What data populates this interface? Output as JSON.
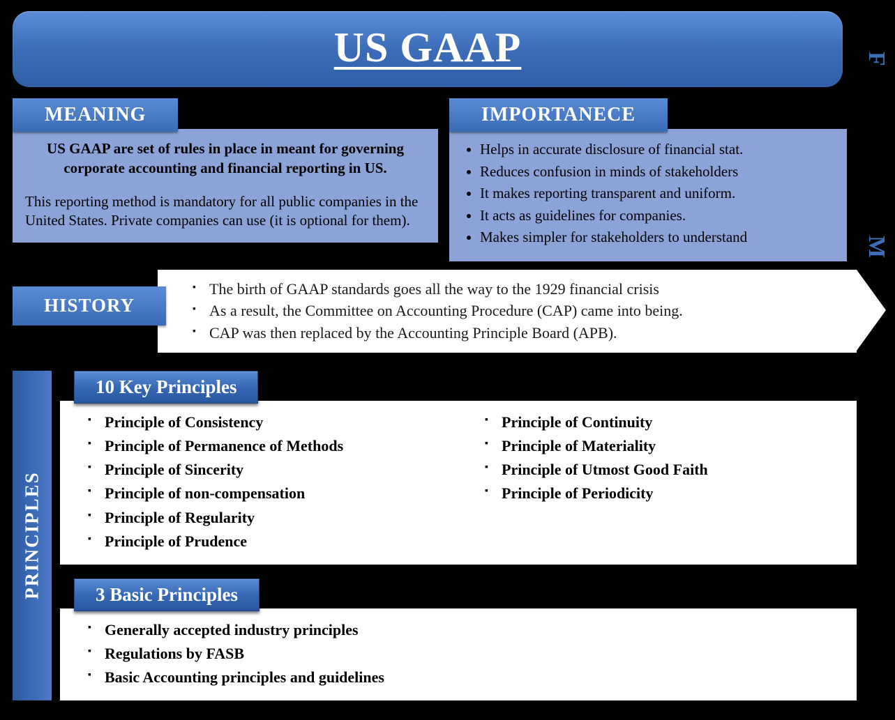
{
  "colors": {
    "background": "#000000",
    "banner_gradient_top": "#5b8dd8",
    "banner_gradient_bottom": "#2f5fa8",
    "panel_light_blue": "#8ba3d6",
    "white": "#ffffff",
    "text_dark": "#000000",
    "side_letter": "#3d6db8"
  },
  "title": "US GAAP",
  "side_letters": {
    "top": "F",
    "bottom": "M"
  },
  "meaning": {
    "header": "MEANING",
    "main_text": "US GAAP are set of rules in place in meant for governing corporate accounting and financial reporting in US.",
    "sub_text": "This reporting method is mandatory for all public companies in the United States. Private companies can use (it is optional for them)."
  },
  "importance": {
    "header": "IMPORTANECE",
    "items": [
      "Helps in accurate disclosure of financial stat.",
      "Reduces confusion in minds of stakeholders",
      "It makes reporting transparent and uniform.",
      "It acts as guidelines for companies.",
      "Makes simpler for stakeholders to understand"
    ]
  },
  "history": {
    "header": "HISTORY",
    "items": [
      "The birth of GAAP standards goes all the way to the 1929 financial crisis",
      "As a result, the Committee on Accounting Procedure (CAP) came into being.",
      "CAP was then replaced by the Accounting Principle Board (APB)."
    ]
  },
  "principles": {
    "tab": "PRINCIPLES",
    "key": {
      "header": "10 Key Principles",
      "left": [
        "Principle of Consistency",
        "Principle of Permanence of Methods",
        "Principle of Sincerity",
        "Principle of non-compensation",
        "Principle of Regularity",
        "Principle of Prudence"
      ],
      "right": [
        "Principle of Continuity",
        "Principle of Materiality",
        "Principle of Utmost Good Faith",
        "Principle of Periodicity"
      ]
    },
    "basic": {
      "header": "3 Basic Principles",
      "items": [
        "Generally accepted industry principles",
        "Regulations by FASB",
        "Basic Accounting principles and guidelines"
      ]
    }
  }
}
